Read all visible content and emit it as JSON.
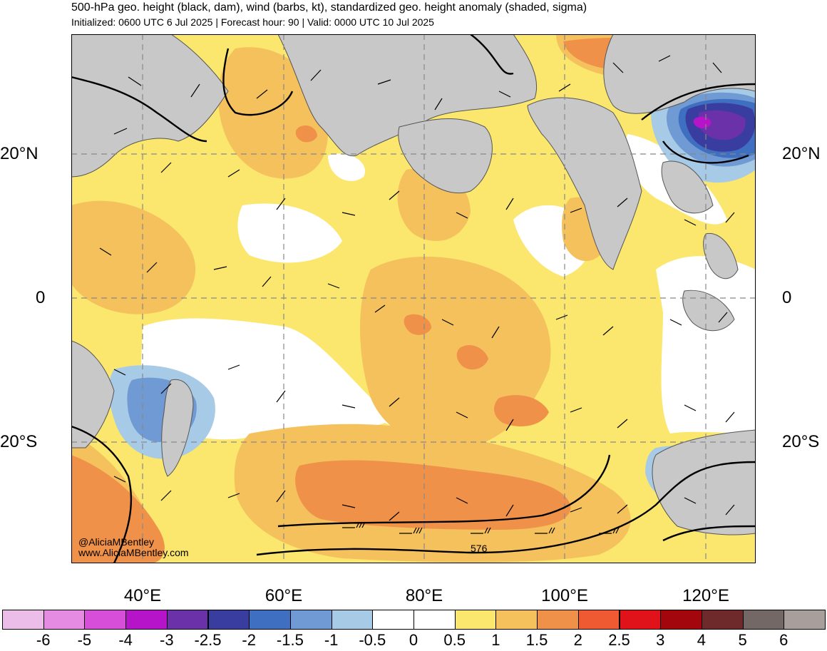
{
  "header": {
    "title": "500-hPa geo. height (black, dam), wind (barbs, kt), standardized geo. height anomaly (shaded, sigma)",
    "subtitle": "Initialized: 0600 UTC 6 Jul 2025 | Forecast hour: 90 | Valid: 0000 UTC 10 Jul 2025"
  },
  "map": {
    "lat_labels": {
      "n20": "20°N",
      "eq": "0",
      "s20": "20°S"
    },
    "lon_labels": [
      "40°E",
      "60°E",
      "80°E",
      "100°E",
      "120°E"
    ],
    "contour_label": "576",
    "credit_line1": "@AliciaMBentley",
    "credit_line2": "www.AliciaMBentley.com"
  },
  "colorbar": {
    "labels": [
      "-6",
      "-5",
      "-4",
      "-3",
      "-2.5",
      "-2",
      "-1.5",
      "-1",
      "-0.5",
      "0",
      "0.5",
      "1",
      "1.5",
      "2",
      "2.5",
      "3",
      "4",
      "5",
      "6"
    ],
    "colors": [
      "#ecbde8",
      "#e58be2",
      "#d74fd8",
      "#b514c8",
      "#6a31a8",
      "#3a3da0",
      "#3f6fc0",
      "#6f9ad3",
      "#a7cbe7",
      "#ffffff",
      "#ffffff",
      "#fbe76e",
      "#f5c15c",
      "#f0914a",
      "#ef5a32",
      "#e0121a",
      "#a4060e",
      "#6e2a2a",
      "#736866",
      "#a89e9c"
    ]
  },
  "colors": {
    "land": "#c8c8c8",
    "neutral": "#ffffff",
    "pos_05": "#fbe76e",
    "pos_1": "#f5c15c",
    "pos_15": "#f0914a",
    "neg_05": "#a7cbe7",
    "neg_1": "#6f9ad3",
    "neg_15": "#3f6fc0",
    "neg_2": "#3a3da0",
    "neg_25": "#6a31a8",
    "neg_3": "#b514c8"
  }
}
